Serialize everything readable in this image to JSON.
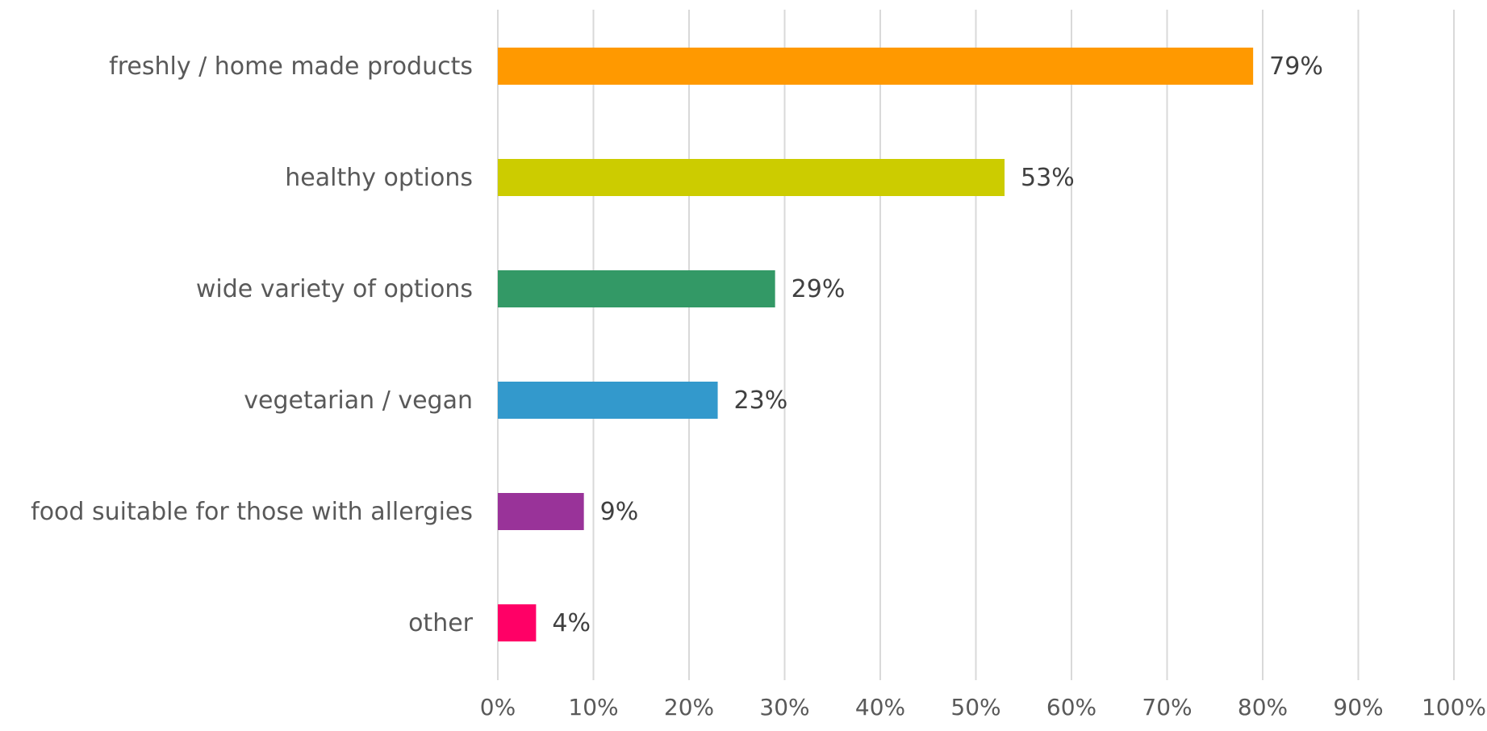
{
  "chart_data": {
    "type": "bar",
    "orientation": "horizontal",
    "categories": [
      "freshly / home made products",
      "healthy options",
      "wide variety of options",
      "vegetarian / vegan",
      "food suitable for those with allergies",
      "other"
    ],
    "values": [
      79,
      53,
      29,
      23,
      9,
      4
    ],
    "data_labels": [
      "79%",
      "53%",
      "29%",
      "23%",
      "9%",
      "4%"
    ],
    "colors": [
      "#FF9900",
      "#CCCC00",
      "#339966",
      "#3399CC",
      "#993399",
      "#FF0066"
    ],
    "xlim": [
      0,
      100
    ],
    "x_ticks": [
      0,
      10,
      20,
      30,
      40,
      50,
      60,
      70,
      80,
      90,
      100
    ],
    "x_tick_labels": [
      "0%",
      "10%",
      "20%",
      "30%",
      "40%",
      "50%",
      "60%",
      "70%",
      "80%",
      "90%",
      "100%"
    ],
    "grid": true,
    "grid_color": "#D9D9D9",
    "label_color": "#595959",
    "legend": "none"
  }
}
